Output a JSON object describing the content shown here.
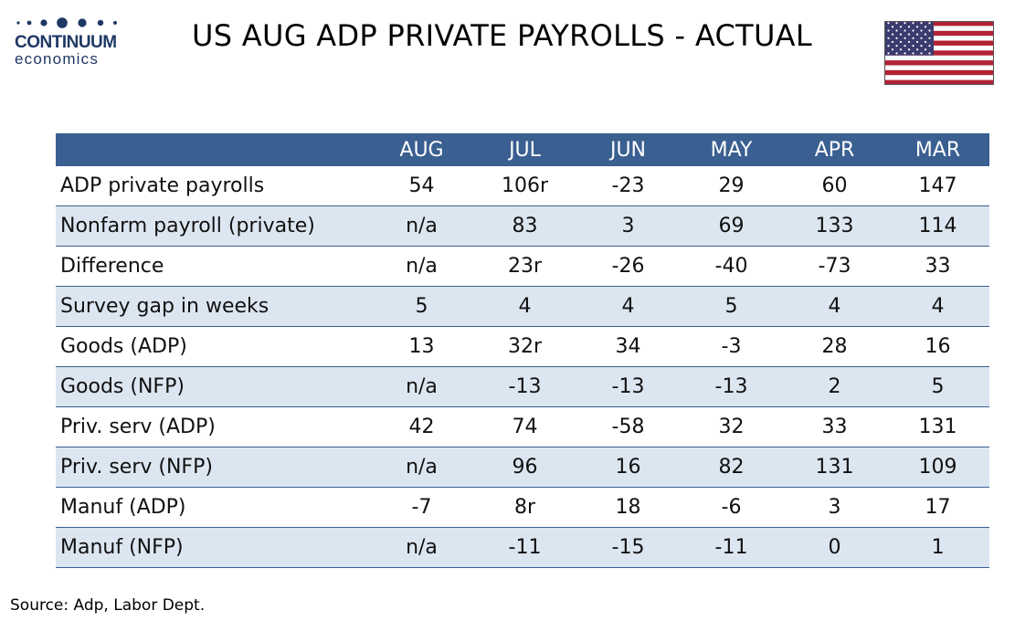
{
  "logo": {
    "name": "CONTINUUM",
    "sub": "economics",
    "color": "#1f3864"
  },
  "title": "US AUG ADP PRIVATE PAYROLLS - ACTUAL",
  "colors": {
    "header_bg": "#3a5f91",
    "stripe": "#dce6f1",
    "flag_red": "#b22234",
    "flag_blue": "#3c3b6e"
  },
  "chart_data": {
    "type": "table",
    "columns": [
      "",
      "AUG",
      "JUL",
      "JUN",
      "MAY",
      "APR",
      "MAR"
    ],
    "rows": [
      {
        "label": "ADP private payrolls",
        "values": [
          "54",
          "106r",
          "-23",
          "29",
          "60",
          "147"
        ]
      },
      {
        "label": "Nonfarm payroll (private)",
        "values": [
          "n/a",
          "83",
          "3",
          "69",
          "133",
          "114"
        ]
      },
      {
        "label": "Difference",
        "values": [
          "n/a",
          "23r",
          "-26",
          "-40",
          "-73",
          "33"
        ]
      },
      {
        "label": "Survey gap in weeks",
        "values": [
          "5",
          "4",
          "4",
          "5",
          "4",
          "4"
        ]
      },
      {
        "label": "Goods (ADP)",
        "values": [
          "13",
          "32r",
          "34",
          "-3",
          "28",
          "16"
        ]
      },
      {
        "label": "Goods (NFP)",
        "values": [
          "n/a",
          "-13",
          "-13",
          "-13",
          "2",
          "5"
        ]
      },
      {
        "label": "Priv. serv (ADP)",
        "values": [
          "42",
          "74",
          "-58",
          "32",
          "33",
          "131"
        ]
      },
      {
        "label": "Priv. serv (NFP)",
        "values": [
          "n/a",
          "96",
          "16",
          "82",
          "131",
          "109"
        ]
      },
      {
        "label": "Manuf (ADP)",
        "values": [
          "-7",
          "8r",
          "18",
          "-6",
          "3",
          "17"
        ]
      },
      {
        "label": "Manuf (NFP)",
        "values": [
          "n/a",
          "-11",
          "-15",
          "-11",
          "0",
          "1"
        ]
      }
    ]
  },
  "source": "Source: Adp, Labor Dept."
}
